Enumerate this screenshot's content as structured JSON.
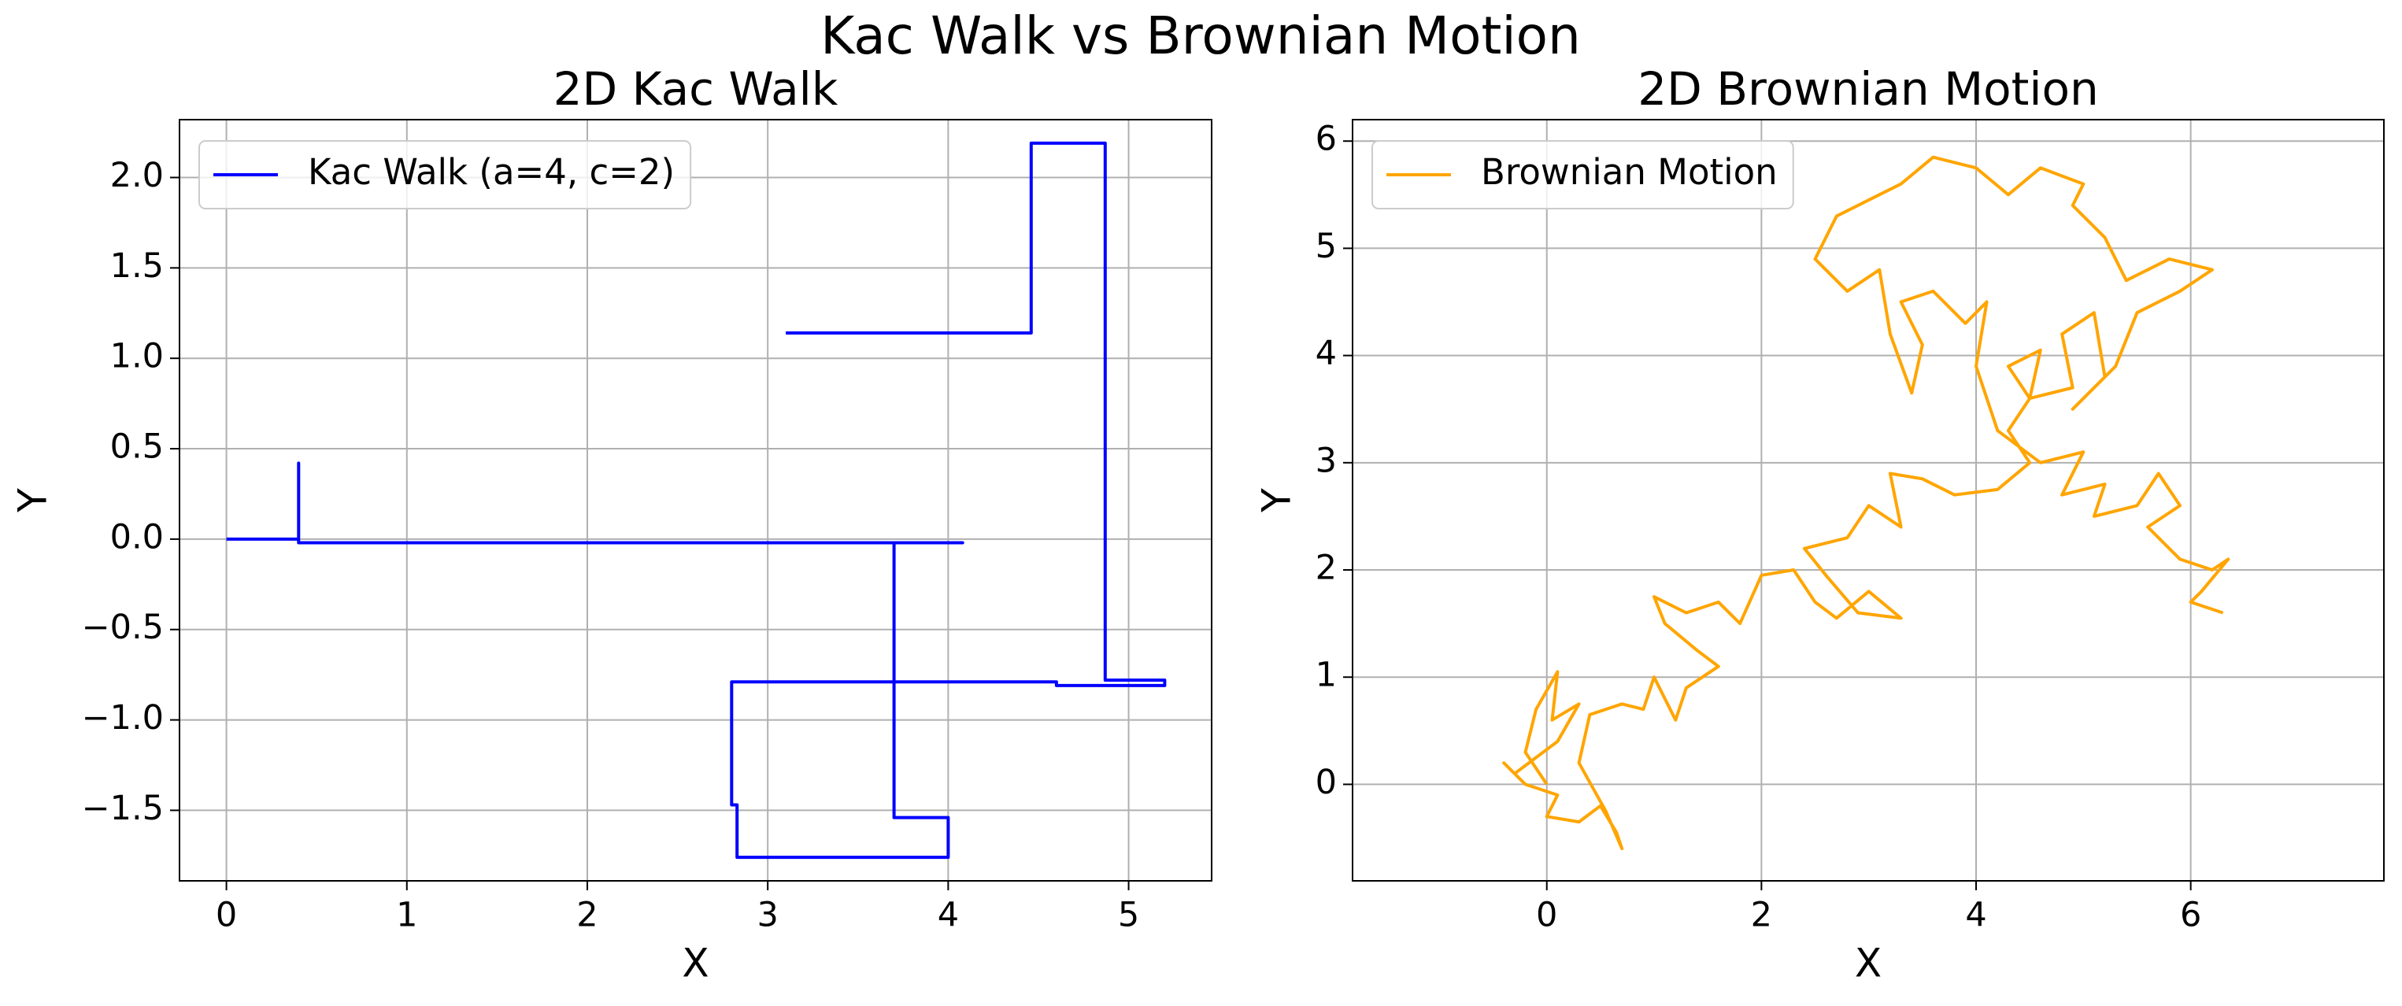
{
  "title": "Kac Walk vs Brownian Motion",
  "chart_data": [
    {
      "type": "line",
      "title": "2D Kac Walk",
      "xlabel": "X",
      "ylabel": "Y",
      "xlim": [
        -0.26,
        5.46
      ],
      "ylim": [
        -1.89,
        2.32
      ],
      "xticks": [
        0,
        1,
        2,
        3,
        4,
        5
      ],
      "yticks": [
        {
          "value": -1.5,
          "label": "−1.5"
        },
        {
          "value": -1.0,
          "label": "−1.0"
        },
        {
          "value": -0.5,
          "label": "−0.5"
        },
        {
          "value": 0,
          "label": "0.0"
        },
        0.5,
        {
          "value": 1.0,
          "label": "1.0"
        },
        1.5,
        {
          "value": 2.0,
          "label": "2.0"
        }
      ],
      "grid": true,
      "legend": "upper left",
      "series": [
        {
          "name": "Kac Walk (a=4, c=2)",
          "color": "#0000ff",
          "x": [
            0,
            0.4,
            0.4,
            0.4,
            4.08,
            3.7,
            3.7,
            4.0,
            4.0,
            2.83,
            2.83,
            2.8,
            2.8,
            4.6,
            4.6,
            5.2,
            5.2,
            4.87,
            4.87,
            4.46,
            4.46,
            3.1
          ],
          "values": [
            0,
            0,
            0.42,
            -0.02,
            -0.02,
            -0.02,
            -1.54,
            -1.54,
            -1.76,
            -1.76,
            -1.47,
            -1.47,
            -0.79,
            -0.79,
            -0.81,
            -0.81,
            -0.78,
            -0.78,
            2.19,
            2.19,
            1.14,
            1.14
          ]
        }
      ]
    },
    {
      "type": "line",
      "title": "2D Brownian Motion",
      "xlabel": "X",
      "ylabel": "Y",
      "xlim": [
        -1.81,
        7.8
      ],
      "ylim": [
        -0.9,
        6.2
      ],
      "xticks": [
        0,
        2,
        4,
        6
      ],
      "yticks": [
        0,
        1,
        2,
        3,
        4,
        5,
        6
      ],
      "grid": true,
      "legend": "upper left",
      "series": [
        {
          "name": "Brownian Motion",
          "color": "#ffa500",
          "x": [
            0,
            -0.2,
            -0.1,
            0.1,
            0.05,
            0.3,
            0.1,
            -0.3,
            -0.4,
            -0.2,
            0.1,
            0.0,
            0.3,
            0.5,
            0.65,
            0.7,
            0.55,
            0.3,
            0.4,
            0.7,
            0.9,
            1.0,
            1.2,
            1.3,
            1.6,
            1.4,
            1.1,
            1.0,
            1.3,
            1.6,
            1.8,
            2.0,
            2.3,
            2.5,
            2.7,
            3.0,
            3.3,
            2.9,
            2.6,
            2.4,
            2.8,
            3.0,
            3.3,
            3.2,
            3.5,
            3.8,
            4.2,
            4.5,
            4.3,
            4.5,
            4.3,
            4.6,
            4.5,
            4.9,
            4.8,
            5.1,
            5.2,
            4.9,
            5.3,
            5.5,
            5.9,
            6.2,
            5.8,
            5.4,
            5.2,
            4.9,
            5.0,
            4.6,
            4.3,
            4.0,
            3.6,
            3.3,
            3.0,
            2.7,
            2.5,
            2.8,
            3.1,
            3.2,
            3.4,
            3.5,
            3.3,
            3.6,
            3.9,
            4.1,
            4.0,
            4.2,
            4.6,
            5.0,
            4.8,
            5.2,
            5.1,
            5.5,
            5.7,
            5.9,
            5.6,
            5.9,
            6.2,
            6.35,
            6.1,
            6.0,
            6.3
          ],
          "values": [
            0,
            0.3,
            0.7,
            1.05,
            0.6,
            0.75,
            0.4,
            0.1,
            0.2,
            0.0,
            -0.1,
            -0.3,
            -0.35,
            -0.2,
            -0.45,
            -0.6,
            -0.25,
            0.2,
            0.65,
            0.75,
            0.7,
            1.0,
            0.6,
            0.9,
            1.1,
            1.25,
            1.5,
            1.75,
            1.6,
            1.7,
            1.5,
            1.95,
            2.0,
            1.7,
            1.55,
            1.8,
            1.55,
            1.6,
            1.95,
            2.2,
            2.3,
            2.6,
            2.4,
            2.9,
            2.85,
            2.7,
            2.75,
            3.0,
            3.3,
            3.6,
            3.9,
            4.05,
            3.6,
            3.7,
            4.2,
            4.4,
            3.8,
            3.5,
            3.9,
            4.4,
            4.6,
            4.8,
            4.9,
            4.7,
            5.1,
            5.4,
            5.6,
            5.75,
            5.5,
            5.75,
            5.85,
            5.6,
            5.45,
            5.3,
            4.9,
            4.6,
            4.8,
            4.2,
            3.65,
            4.1,
            4.5,
            4.6,
            4.3,
            4.5,
            3.9,
            3.3,
            3.0,
            3.1,
            2.7,
            2.8,
            2.5,
            2.6,
            2.9,
            2.6,
            2.4,
            2.1,
            2.0,
            2.1,
            1.8,
            1.7,
            1.6
          ]
        }
      ]
    }
  ]
}
